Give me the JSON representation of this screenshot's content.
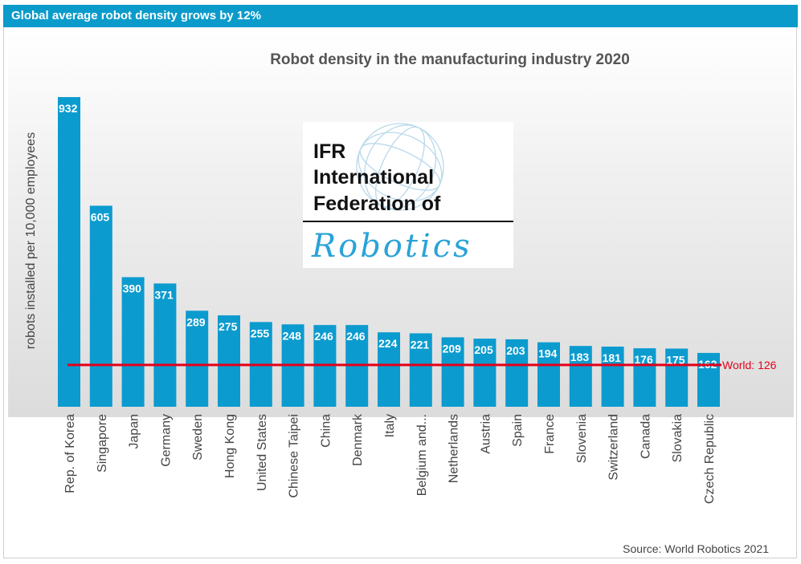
{
  "header": {
    "banner": "Global average robot density grows by 12%"
  },
  "logo": {
    "line1": "IFR",
    "line2": "International",
    "line3": "Federation of",
    "script": "Robotics"
  },
  "colors": {
    "bar": "#0b9bcf",
    "world_line": "#e3001b",
    "banner": "#0b9bcb"
  },
  "chart_data": {
    "type": "bar",
    "title": "Robot density in the manufacturing industry 2020",
    "ylabel": "robots installed per 10,000 employees",
    "xlabel": "",
    "categories": [
      "Rep. of Korea",
      "Singapore",
      "Japan",
      "Germany",
      "Sweden",
      "Hong Kong",
      "United States",
      "Chinese Taipei",
      "China",
      "Denmark",
      "Italy",
      "Belgium and...",
      "Netherlands",
      "Austria",
      "Spain",
      "France",
      "Slovenia",
      "Switzerland",
      "Canada",
      "Slovakia",
      "Czech Republic"
    ],
    "values": [
      932,
      605,
      390,
      371,
      289,
      275,
      255,
      248,
      246,
      246,
      224,
      221,
      209,
      205,
      203,
      194,
      183,
      181,
      176,
      175,
      162
    ],
    "value_labels": [
      "932",
      "605",
      "390",
      "371",
      "289",
      "275",
      "255",
      "248",
      "246",
      "246",
      "224",
      "221",
      "209",
      "205",
      "203",
      "194",
      "183",
      "181",
      "176",
      "175",
      "162"
    ],
    "ylim": [
      0,
      940
    ],
    "grid": false,
    "reference_line": {
      "label": "World: 126",
      "value": 126
    },
    "source": "Source: World Robotics 2021"
  }
}
